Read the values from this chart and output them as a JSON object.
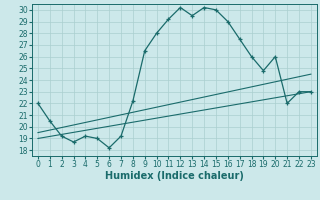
{
  "xlabel": "Humidex (Indice chaleur)",
  "bg_color": "#cce8ea",
  "line_color": "#1a6b6b",
  "xlim": [
    -0.5,
    23.5
  ],
  "ylim": [
    17.5,
    30.5
  ],
  "xticks": [
    0,
    1,
    2,
    3,
    4,
    5,
    6,
    7,
    8,
    9,
    10,
    11,
    12,
    13,
    14,
    15,
    16,
    17,
    18,
    19,
    20,
    21,
    22,
    23
  ],
  "yticks": [
    18,
    19,
    20,
    21,
    22,
    23,
    24,
    25,
    26,
    27,
    28,
    29,
    30
  ],
  "line1_x": [
    0,
    1,
    2,
    3,
    4,
    5,
    6,
    7,
    8,
    9,
    10,
    11,
    12,
    13,
    14,
    15,
    16,
    17,
    18,
    19,
    20,
    21,
    22,
    23
  ],
  "line1_y": [
    22.0,
    20.5,
    19.2,
    18.7,
    19.2,
    19.0,
    18.2,
    19.2,
    22.2,
    26.5,
    28.0,
    29.2,
    30.2,
    29.5,
    30.2,
    30.0,
    29.0,
    27.5,
    26.0,
    24.8,
    26.0,
    22.0,
    23.0,
    23.0
  ],
  "line2_x": [
    0,
    23
  ],
  "line2_y": [
    19.5,
    24.5
  ],
  "line3_x": [
    0,
    23
  ],
  "line3_y": [
    19.0,
    23.0
  ],
  "grid_color": "#aacfcf",
  "tick_fontsize": 5.5,
  "label_fontsize": 7.0
}
